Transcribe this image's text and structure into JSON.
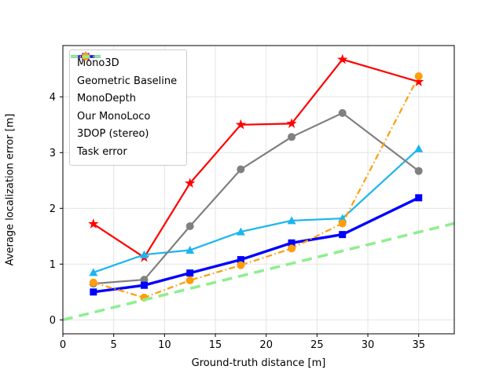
{
  "chart_data": {
    "type": "line",
    "title": "",
    "xlabel": "Ground-truth distance [m]",
    "ylabel": "Average localization error [m]",
    "xlim": [
      0,
      38.5
    ],
    "ylim": [
      -0.25,
      4.92
    ],
    "xticks": [
      0,
      5,
      10,
      15,
      20,
      25,
      30,
      35
    ],
    "yticks": [
      0,
      1,
      2,
      3,
      4
    ],
    "grid": true,
    "legend_position": "upper left",
    "series": [
      {
        "name": "Mono3D",
        "color": "#ff0000",
        "marker": "star",
        "line": "solid",
        "width": 2.2,
        "x": [
          3,
          8,
          12.5,
          17.5,
          22.5,
          27.5,
          35
        ],
        "values": [
          1.72,
          1.12,
          2.45,
          3.5,
          3.52,
          4.67,
          4.27
        ]
      },
      {
        "name": "Geometric Baseline",
        "color": "#1cb5f0",
        "marker": "triangle",
        "line": "solid",
        "width": 2.2,
        "x": [
          3,
          8,
          12.5,
          17.5,
          22.5,
          27.5,
          35
        ],
        "values": [
          0.85,
          1.17,
          1.25,
          1.58,
          1.78,
          1.82,
          3.07
        ]
      },
      {
        "name": "MonoDepth",
        "color": "#808080",
        "marker": "circle",
        "line": "solid",
        "width": 2.2,
        "x": [
          3,
          8,
          12.5,
          17.5,
          22.5,
          27.5,
          35
        ],
        "values": [
          0.65,
          0.72,
          1.68,
          2.7,
          3.28,
          3.71,
          2.67
        ]
      },
      {
        "name": "Our MonoLoco",
        "color": "#0000ff",
        "marker": "square",
        "line": "solid",
        "width": 3.4,
        "x": [
          3,
          8,
          12.5,
          17.5,
          22.5,
          27.5,
          35
        ],
        "values": [
          0.5,
          0.62,
          0.84,
          1.08,
          1.38,
          1.53,
          2.19
        ]
      },
      {
        "name": "3DOP (stereo)",
        "color": "#ff9d0a",
        "marker": "circle",
        "line": "dashdot",
        "width": 2.2,
        "x": [
          3,
          8,
          12.5,
          17.5,
          22.5,
          27.5,
          35
        ],
        "values": [
          0.67,
          0.4,
          0.71,
          0.98,
          1.28,
          1.73,
          4.37
        ]
      },
      {
        "name": "Task error",
        "color": "#90ee90",
        "marker": "none",
        "line": "dashed",
        "width": 3.6,
        "x": [
          0,
          38.5
        ],
        "values": [
          0.0,
          1.73
        ]
      }
    ]
  }
}
